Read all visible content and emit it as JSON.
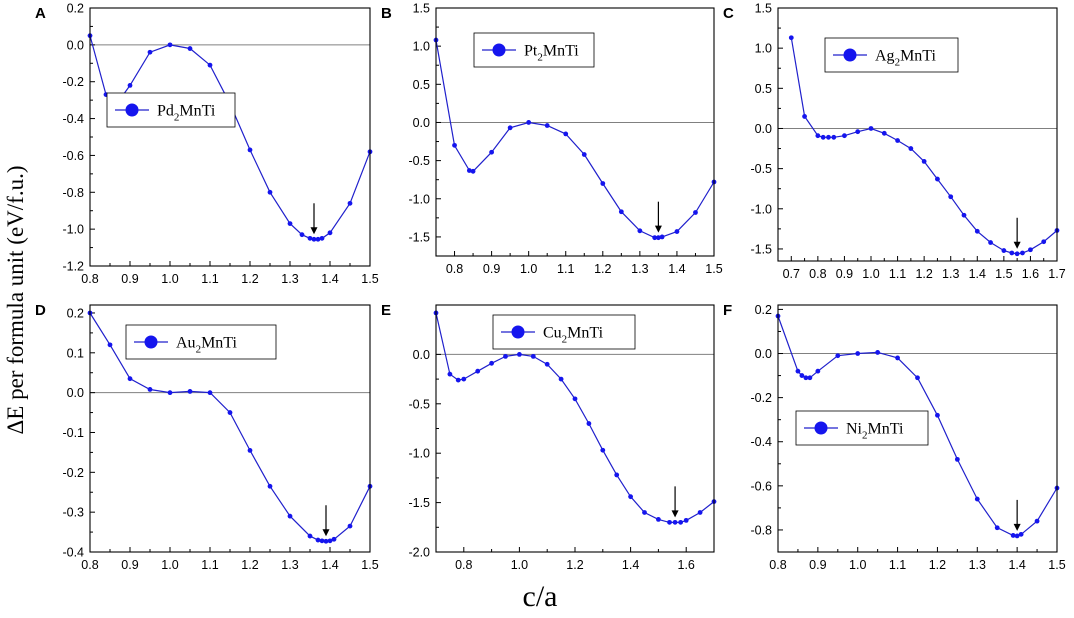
{
  "figure": {
    "ylabel": "ΔE per formula unit (eV/f.u.)",
    "xlabel": "c/a"
  },
  "colors": {
    "series": "#2020cc",
    "marker": "#1515ee",
    "axis": "#000000",
    "zero_line": "#808080"
  },
  "chart_data": [
    {
      "panel": "A",
      "type": "line",
      "legend": "Pd",
      "legend_sub": "2",
      "legend_rest": "MnTi",
      "xlim": [
        0.8,
        1.5
      ],
      "ylim": [
        -1.2,
        0.2
      ],
      "xticks": [
        "0.8",
        "0.9",
        "1.0",
        "1.1",
        "1.2",
        "1.3",
        "1.4",
        "1.5"
      ],
      "yticks": [
        "0.2",
        "0.0",
        "-0.2",
        "-0.4",
        "-0.6",
        "-0.8",
        "-1.0",
        "-1.2"
      ],
      "minimum_arrow_x": 1.36,
      "x": [
        0.8,
        0.84,
        0.85,
        0.86,
        0.87,
        0.88,
        0.9,
        0.95,
        1.0,
        1.05,
        1.1,
        1.15,
        1.2,
        1.25,
        1.3,
        1.33,
        1.35,
        1.36,
        1.37,
        1.38,
        1.4,
        1.45,
        1.5
      ],
      "y": [
        0.05,
        -0.27,
        -0.3,
        -0.31,
        -0.3,
        -0.28,
        -0.22,
        -0.04,
        0.0,
        -0.02,
        -0.11,
        -0.32,
        -0.57,
        -0.8,
        -0.97,
        -1.03,
        -1.05,
        -1.055,
        -1.055,
        -1.05,
        -1.02,
        -0.86,
        -0.58
      ]
    },
    {
      "panel": "B",
      "type": "line",
      "legend": "Pt",
      "legend_sub": "2",
      "legend_rest": "MnTi",
      "xlim": [
        0.75,
        1.5
      ],
      "ylim": [
        -1.75,
        1.5
      ],
      "xticks": [
        "0.8",
        "0.9",
        "1.0",
        "1.1",
        "1.2",
        "1.3",
        "1.4",
        "1.5"
      ],
      "yticks": [
        "1.5",
        "1.0",
        "0.5",
        "0.0",
        "-0.5",
        "-1.0",
        "-1.5"
      ],
      "minimum_arrow_x": 1.35,
      "x": [
        0.75,
        0.8,
        0.84,
        0.85,
        0.9,
        0.95,
        1.0,
        1.05,
        1.1,
        1.15,
        1.2,
        1.25,
        1.3,
        1.34,
        1.35,
        1.36,
        1.4,
        1.45,
        1.5
      ],
      "y": [
        1.08,
        -0.3,
        -0.63,
        -0.64,
        -0.39,
        -0.07,
        0.0,
        -0.04,
        -0.15,
        -0.42,
        -0.8,
        -1.17,
        -1.42,
        -1.51,
        -1.51,
        -1.5,
        -1.43,
        -1.18,
        -0.78
      ]
    },
    {
      "panel": "C",
      "type": "line",
      "legend": "Ag",
      "legend_sub": "2",
      "legend_rest": "MnTi",
      "xlim": [
        0.65,
        1.7
      ],
      "ylim": [
        -1.65,
        1.5
      ],
      "xticks": [
        "0.7",
        "0.8",
        "0.9",
        "1.0",
        "1.1",
        "1.2",
        "1.3",
        "1.4",
        "1.5",
        "1.6",
        "1.7"
      ],
      "yticks": [
        "1.5",
        "1.0",
        "0.5",
        "0.0",
        "-0.5",
        "-1.0",
        "-1.5"
      ],
      "minimum_arrow_x": 1.55,
      "x": [
        0.7,
        0.75,
        0.8,
        0.82,
        0.84,
        0.86,
        0.9,
        0.95,
        1.0,
        1.05,
        1.1,
        1.15,
        1.2,
        1.25,
        1.3,
        1.35,
        1.4,
        1.45,
        1.5,
        1.53,
        1.55,
        1.57,
        1.6,
        1.65,
        1.7
      ],
      "y": [
        1.13,
        0.15,
        -0.09,
        -0.11,
        -0.11,
        -0.11,
        -0.09,
        -0.04,
        0.0,
        -0.06,
        -0.15,
        -0.25,
        -0.41,
        -0.63,
        -0.85,
        -1.08,
        -1.28,
        -1.42,
        -1.52,
        -1.55,
        -1.56,
        -1.55,
        -1.51,
        -1.41,
        -1.27
      ]
    },
    {
      "panel": "D",
      "type": "line",
      "legend": "Au",
      "legend_sub": "2",
      "legend_rest": "MnTi",
      "xlim": [
        0.8,
        1.5
      ],
      "ylim": [
        -0.4,
        0.22
      ],
      "xticks": [
        "0.8",
        "0.9",
        "1.0",
        "1.1",
        "1.2",
        "1.3",
        "1.4",
        "1.5"
      ],
      "yticks": [
        "0.2",
        "0.1",
        "0.0",
        "-0.1",
        "-0.2",
        "-0.3",
        "-0.4"
      ],
      "minimum_arrow_x": 1.39,
      "x": [
        0.8,
        0.85,
        0.9,
        0.95,
        1.0,
        1.05,
        1.1,
        1.15,
        1.2,
        1.25,
        1.3,
        1.35,
        1.37,
        1.38,
        1.39,
        1.4,
        1.41,
        1.45,
        1.5
      ],
      "y": [
        0.2,
        0.12,
        0.035,
        0.008,
        0.0,
        0.003,
        0.0,
        -0.05,
        -0.145,
        -0.235,
        -0.31,
        -0.36,
        -0.37,
        -0.372,
        -0.373,
        -0.372,
        -0.368,
        -0.335,
        -0.235
      ]
    },
    {
      "panel": "E",
      "type": "line",
      "legend": "Cu",
      "legend_sub": "2",
      "legend_rest": "MnTi",
      "xlim": [
        0.7,
        1.7
      ],
      "ylim": [
        -2.0,
        0.5
      ],
      "xticks": [
        "0.8",
        "1.0",
        "1.2",
        "1.4",
        "1.6"
      ],
      "yticks": [
        "0.0",
        "-0.5",
        "-1.0",
        "-1.5",
        "-2.0"
      ],
      "minimum_arrow_x": 1.56,
      "x": [
        0.7,
        0.75,
        0.78,
        0.8,
        0.85,
        0.9,
        0.95,
        1.0,
        1.05,
        1.1,
        1.15,
        1.2,
        1.25,
        1.3,
        1.35,
        1.4,
        1.45,
        1.5,
        1.54,
        1.56,
        1.58,
        1.6,
        1.65,
        1.7
      ],
      "y": [
        0.42,
        -0.2,
        -0.26,
        -0.25,
        -0.17,
        -0.09,
        -0.02,
        0.0,
        -0.02,
        -0.1,
        -0.25,
        -0.45,
        -0.7,
        -0.97,
        -1.22,
        -1.44,
        -1.6,
        -1.67,
        -1.7,
        -1.7,
        -1.7,
        -1.68,
        -1.6,
        -1.49
      ]
    },
    {
      "panel": "F",
      "type": "line",
      "legend": "Ni",
      "legend_sub": "2",
      "legend_rest": "MnTi",
      "xlim": [
        0.8,
        1.5
      ],
      "ylim": [
        -0.9,
        0.22
      ],
      "xticks": [
        "0.8",
        "0.9",
        "1.0",
        "1.1",
        "1.2",
        "1.3",
        "1.4",
        "1.5"
      ],
      "yticks": [
        "0.2",
        "0.0",
        "-0.2",
        "-0.4",
        "-0.6",
        "-0.8"
      ],
      "minimum_arrow_x": 1.4,
      "x": [
        0.8,
        0.85,
        0.86,
        0.87,
        0.88,
        0.9,
        0.95,
        1.0,
        1.05,
        1.1,
        1.15,
        1.2,
        1.25,
        1.3,
        1.35,
        1.39,
        1.4,
        1.41,
        1.45,
        1.5
      ],
      "y": [
        0.17,
        -0.08,
        -0.1,
        -0.11,
        -0.11,
        -0.08,
        -0.01,
        0.0,
        0.005,
        -0.02,
        -0.11,
        -0.28,
        -0.48,
        -0.66,
        -0.79,
        -0.825,
        -0.827,
        -0.82,
        -0.76,
        -0.61
      ]
    }
  ]
}
